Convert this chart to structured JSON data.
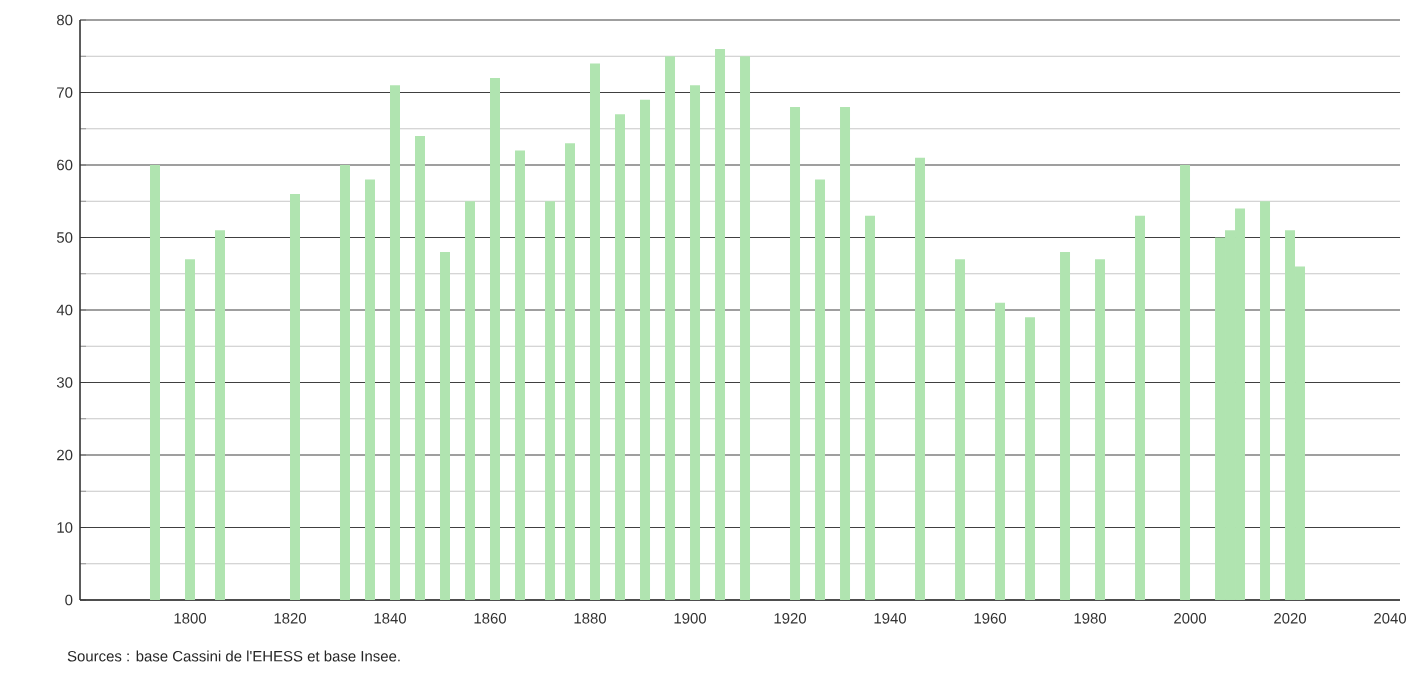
{
  "chart_data": {
    "type": "bar",
    "x": [
      1793,
      1800,
      1806,
      1821,
      1831,
      1836,
      1841,
      1846,
      1851,
      1856,
      1861,
      1866,
      1872,
      1876,
      1881,
      1886,
      1891,
      1896,
      1901,
      1906,
      1911,
      1921,
      1926,
      1931,
      1936,
      1946,
      1954,
      1962,
      1968,
      1975,
      1982,
      1990,
      1999,
      2006,
      2008,
      2010,
      2015,
      2020,
      2022
    ],
    "values": [
      60,
      47,
      51,
      56,
      60,
      58,
      71,
      64,
      48,
      55,
      72,
      62,
      55,
      63,
      74,
      67,
      69,
      75,
      71,
      76,
      75,
      68,
      58,
      68,
      53,
      61,
      47,
      41,
      39,
      48,
      47,
      53,
      60,
      50,
      51,
      54,
      55,
      51,
      46
    ],
    "color": "#b0e4b0",
    "xlim": [
      1778,
      2042
    ],
    "xticks": [
      1800,
      1820,
      1840,
      1860,
      1880,
      1900,
      1920,
      1940,
      1960,
      1980,
      2000,
      2020,
      2040
    ],
    "ylim": [
      0,
      80
    ],
    "yticks": [
      0,
      {
        "value": 5,
        "label": null
      },
      10,
      {
        "value": 15,
        "label": null
      },
      20,
      {
        "value": 25,
        "label": null
      },
      30,
      {
        "value": 35,
        "label": null
      },
      40,
      {
        "value": 45,
        "label": null
      },
      50,
      {
        "value": 55,
        "label": null
      },
      60,
      {
        "value": 65,
        "label": null
      },
      70,
      {
        "value": 75,
        "label": null
      },
      80
    ],
    "grid": "y",
    "annotations": [
      "Sources : base Cassini de l'EHESS et base Insee."
    ]
  }
}
